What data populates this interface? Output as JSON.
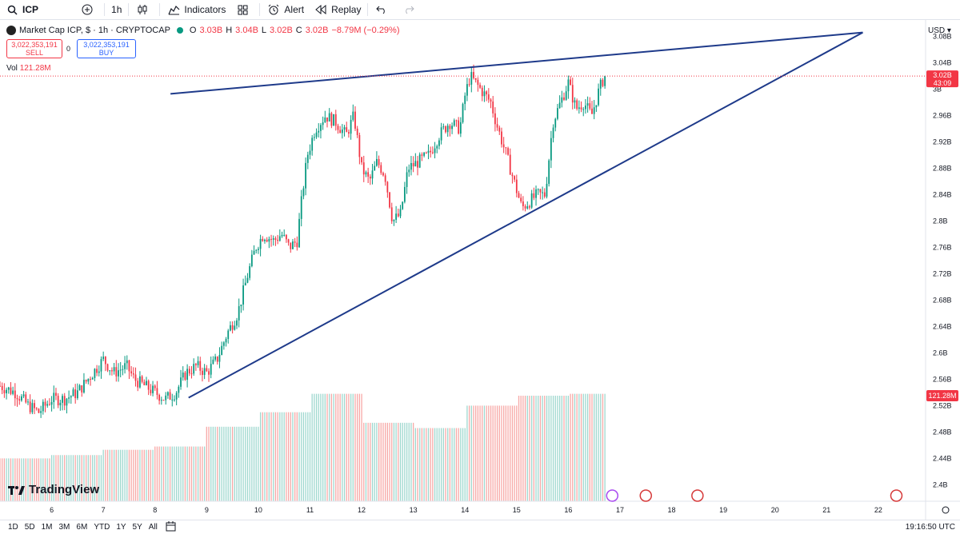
{
  "toolbar": {
    "symbol": "ICP",
    "interval": "1h",
    "indicators_label": "Indicators",
    "alert_label": "Alert",
    "replay_label": "Replay"
  },
  "legend": {
    "title": "Market Cap ICP, $ · 1h · CRYPTOCAP",
    "open_label": "O",
    "open": "3.03B",
    "high_label": "H",
    "high": "3.04B",
    "low_label": "L",
    "low": "3.02B",
    "close_label": "C",
    "close": "3.02B",
    "change": "−8.79M (−0.29%)",
    "sell_price": "3,022,353,191",
    "sell_label": "SELL",
    "spread": "0",
    "buy_price": "3,022,353,191",
    "buy_label": "BUY",
    "vol_label": "Vol",
    "vol_value": "121.28M"
  },
  "price_axis": {
    "currency": "USD",
    "last_price_label": "3.02B",
    "countdown": "43:09",
    "volume_badge": "121.28M"
  },
  "branding": {
    "logo_text": "TradingView"
  },
  "bottom": {
    "ranges": [
      "1D",
      "5D",
      "1M",
      "3M",
      "6M",
      "YTD",
      "1Y",
      "5Y",
      "All"
    ],
    "time": "19:16:50 UTC"
  },
  "colors": {
    "up": "#089981",
    "down": "#f23645",
    "trendline": "#1e3a8a",
    "volume_up": "#9fd8cf",
    "volume_down": "#f7a9a7"
  },
  "chart_data": {
    "type": "candlestick",
    "y_unit": "USD market cap (B)",
    "ylim": [
      2.375,
      3.105
    ],
    "y_ticks": [
      {
        "value": 3.08,
        "label": "3.08B"
      },
      {
        "value": 3.04,
        "label": "3.04B"
      },
      {
        "value": 3.0,
        "label": "3B"
      },
      {
        "value": 2.96,
        "label": "2.96B"
      },
      {
        "value": 2.92,
        "label": "2.92B"
      },
      {
        "value": 2.88,
        "label": "2.88B"
      },
      {
        "value": 2.84,
        "label": "2.84B"
      },
      {
        "value": 2.8,
        "label": "2.8B"
      },
      {
        "value": 2.76,
        "label": "2.76B"
      },
      {
        "value": 2.72,
        "label": "2.72B"
      },
      {
        "value": 2.68,
        "label": "2.68B"
      },
      {
        "value": 2.64,
        "label": "2.64B"
      },
      {
        "value": 2.6,
        "label": "2.6B"
      },
      {
        "value": 2.56,
        "label": "2.56B"
      },
      {
        "value": 2.52,
        "label": "2.52B"
      },
      {
        "value": 2.48,
        "label": "2.48B"
      },
      {
        "value": 2.44,
        "label": "2.44B"
      },
      {
        "value": 2.4,
        "label": "2.4B"
      }
    ],
    "x_day_range": [
      5,
      22.9
    ],
    "x_ticks": [
      {
        "day": 6,
        "label": "6"
      },
      {
        "day": 7,
        "label": "7"
      },
      {
        "day": 8,
        "label": "8"
      },
      {
        "day": 9,
        "label": "9"
      },
      {
        "day": 10,
        "label": "10"
      },
      {
        "day": 11,
        "label": "11"
      },
      {
        "day": 12,
        "label": "12"
      },
      {
        "day": 13,
        "label": "13"
      },
      {
        "day": 14,
        "label": "14"
      },
      {
        "day": 15,
        "label": "15"
      },
      {
        "day": 16,
        "label": "16"
      },
      {
        "day": 17,
        "label": "17"
      },
      {
        "day": 18,
        "label": "18"
      },
      {
        "day": 19,
        "label": "19"
      },
      {
        "day": 20,
        "label": "20"
      },
      {
        "day": 21,
        "label": "21"
      },
      {
        "day": 22,
        "label": "22"
      }
    ],
    "series_close": [
      [
        5.0,
        2.55
      ],
      [
        5.3,
        2.54
      ],
      [
        5.55,
        2.52
      ],
      [
        5.75,
        2.51
      ],
      [
        6.0,
        2.53
      ],
      [
        6.25,
        2.53
      ],
      [
        6.5,
        2.54
      ],
      [
        6.7,
        2.56
      ],
      [
        6.9,
        2.58
      ],
      [
        7.0,
        2.59
      ],
      [
        7.2,
        2.57
      ],
      [
        7.45,
        2.58
      ],
      [
        7.6,
        2.56
      ],
      [
        7.8,
        2.55
      ],
      [
        8.0,
        2.54
      ],
      [
        8.2,
        2.53
      ],
      [
        8.4,
        2.54
      ],
      [
        8.6,
        2.57
      ],
      [
        8.8,
        2.58
      ],
      [
        9.0,
        2.57
      ],
      [
        9.2,
        2.59
      ],
      [
        9.4,
        2.63
      ],
      [
        9.6,
        2.66
      ],
      [
        9.8,
        2.72
      ],
      [
        9.95,
        2.76
      ],
      [
        10.1,
        2.78
      ],
      [
        10.3,
        2.77
      ],
      [
        10.45,
        2.78
      ],
      [
        10.6,
        2.76
      ],
      [
        10.75,
        2.77
      ],
      [
        10.85,
        2.84
      ],
      [
        10.95,
        2.9
      ],
      [
        11.1,
        2.94
      ],
      [
        11.3,
        2.96
      ],
      [
        11.5,
        2.95
      ],
      [
        11.7,
        2.93
      ],
      [
        11.85,
        2.96
      ],
      [
        12.0,
        2.88
      ],
      [
        12.15,
        2.86
      ],
      [
        12.3,
        2.89
      ],
      [
        12.45,
        2.87
      ],
      [
        12.6,
        2.8
      ],
      [
        12.75,
        2.81
      ],
      [
        12.9,
        2.88
      ],
      [
        13.1,
        2.89
      ],
      [
        13.3,
        2.9
      ],
      [
        13.5,
        2.93
      ],
      [
        13.7,
        2.95
      ],
      [
        13.9,
        2.94
      ],
      [
        14.0,
        2.99
      ],
      [
        14.1,
        3.02
      ],
      [
        14.3,
        3.0
      ],
      [
        14.5,
        2.98
      ],
      [
        14.6,
        2.95
      ],
      [
        14.8,
        2.9
      ],
      [
        14.95,
        2.86
      ],
      [
        15.1,
        2.82
      ],
      [
        15.25,
        2.83
      ],
      [
        15.4,
        2.84
      ],
      [
        15.55,
        2.84
      ],
      [
        15.7,
        2.95
      ],
      [
        15.85,
        2.98
      ],
      [
        16.0,
        3.01
      ],
      [
        16.15,
        2.97
      ],
      [
        16.3,
        2.98
      ],
      [
        16.45,
        2.96
      ],
      [
        16.6,
        3.0
      ],
      [
        16.7,
        3.02
      ]
    ],
    "trendlines": [
      {
        "name": "upper",
        "points": [
          [
            8.3,
            2.993
          ],
          [
            21.7,
            3.086
          ]
        ]
      },
      {
        "name": "lower",
        "points": [
          [
            8.65,
            2.532
          ],
          [
            21.7,
            3.086
          ]
        ]
      }
    ],
    "last_price": 3.02
  }
}
